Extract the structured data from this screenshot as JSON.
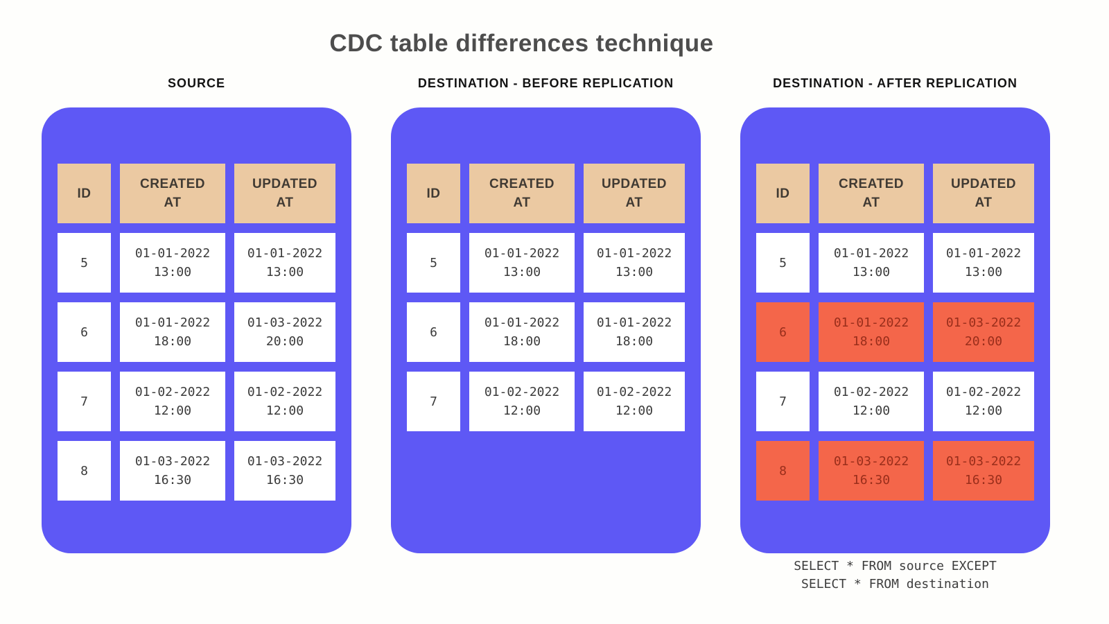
{
  "title": "CDC table differences technique",
  "caption": {
    "line1": "SELECT * FROM source EXCEPT",
    "line2": "SELECT * FROM destination"
  },
  "colors": {
    "card_background": "#5e58f5",
    "header_cell_background": "#ebc9a2",
    "header_cell_text": "#403a33",
    "cell_background": "#ffffff",
    "cell_text": "#3a3a3a",
    "highlight_background": "#f4664a",
    "highlight_text": "#992e1b",
    "page_background": "#fefefc"
  },
  "tables": [
    {
      "heading": "SOURCE",
      "columns": [
        "ID",
        "CREATED AT",
        "UPDATED AT"
      ],
      "rows": [
        {
          "id": "5",
          "created_date": "01-01-2022",
          "created_time": "13:00",
          "updated_date": "01-01-2022",
          "updated_time": "13:00",
          "changed": false
        },
        {
          "id": "6",
          "created_date": "01-01-2022",
          "created_time": "18:00",
          "updated_date": "01-03-2022",
          "updated_time": "20:00",
          "changed": false
        },
        {
          "id": "7",
          "created_date": "01-02-2022",
          "created_time": "12:00",
          "updated_date": "01-02-2022",
          "updated_time": "12:00",
          "changed": false
        },
        {
          "id": "8",
          "created_date": "01-03-2022",
          "created_time": "16:30",
          "updated_date": "01-03-2022",
          "updated_time": "16:30",
          "changed": false
        }
      ]
    },
    {
      "heading": "DESTINATION - BEFORE REPLICATION",
      "columns": [
        "ID",
        "CREATED AT",
        "UPDATED AT"
      ],
      "rows": [
        {
          "id": "5",
          "created_date": "01-01-2022",
          "created_time": "13:00",
          "updated_date": "01-01-2022",
          "updated_time": "13:00",
          "changed": false
        },
        {
          "id": "6",
          "created_date": "01-01-2022",
          "created_time": "18:00",
          "updated_date": "01-01-2022",
          "updated_time": "18:00",
          "changed": false
        },
        {
          "id": "7",
          "created_date": "01-02-2022",
          "created_time": "12:00",
          "updated_date": "01-02-2022",
          "updated_time": "12:00",
          "changed": false
        }
      ]
    },
    {
      "heading": "DESTINATION - AFTER REPLICATION",
      "columns": [
        "ID",
        "CREATED AT",
        "UPDATED AT"
      ],
      "rows": [
        {
          "id": "5",
          "created_date": "01-01-2022",
          "created_time": "13:00",
          "updated_date": "01-01-2022",
          "updated_time": "13:00",
          "changed": false
        },
        {
          "id": "6",
          "created_date": "01-01-2022",
          "created_time": "18:00",
          "updated_date": "01-03-2022",
          "updated_time": "20:00",
          "changed": true
        },
        {
          "id": "7",
          "created_date": "01-02-2022",
          "created_time": "12:00",
          "updated_date": "01-02-2022",
          "updated_time": "12:00",
          "changed": false
        },
        {
          "id": "8",
          "created_date": "01-03-2022",
          "created_time": "16:30",
          "updated_date": "01-03-2022",
          "updated_time": "16:30",
          "changed": true
        }
      ]
    }
  ]
}
